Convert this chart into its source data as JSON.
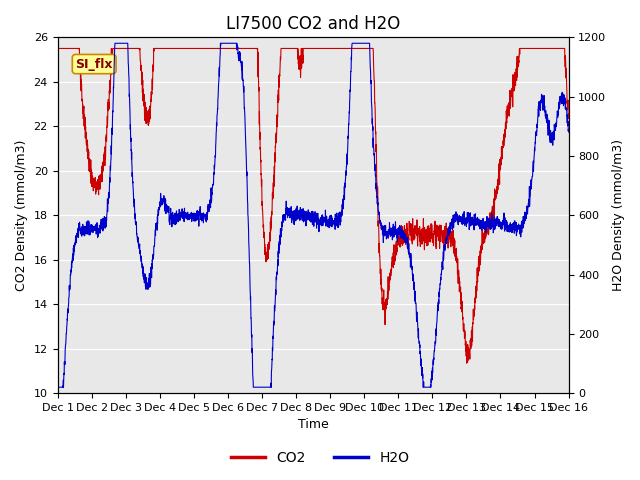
{
  "title": "LI7500 CO2 and H2O",
  "xlabel": "Time",
  "ylabel_left": "CO2 Density (mmol/m3)",
  "ylabel_right": "H2O Density (mmol/m3)",
  "ylim_left": [
    10,
    26
  ],
  "ylim_right": [
    0,
    1200
  ],
  "yticks_left": [
    10,
    12,
    14,
    16,
    18,
    20,
    22,
    24,
    26
  ],
  "yticks_right": [
    0,
    200,
    400,
    600,
    800,
    1000,
    1200
  ],
  "xticklabels": [
    "Dec 1",
    "Dec 2",
    "Dec 3",
    "Dec 4",
    "Dec 5",
    "Dec 6",
    "Dec 7",
    "Dec 8",
    "Dec 9",
    "Dec 10",
    "Dec 11",
    "Dec 12",
    "Dec 13",
    "Dec 14",
    "Dec 15",
    "Dec 16"
  ],
  "co2_color": "#cc0000",
  "h2o_color": "#0000cc",
  "background_color": "#e8e8e8",
  "legend_co2": "CO2",
  "legend_h2o": "H2O",
  "annotation_text": "SI_flx",
  "annotation_bg": "#ffff99",
  "annotation_border": "#cc8800",
  "linewidth": 0.8,
  "n_points": 3000,
  "seed": 7,
  "title_fontsize": 12,
  "axis_label_fontsize": 9,
  "tick_fontsize": 8,
  "legend_fontsize": 10,
  "fig_facecolor": "#ffffff",
  "figsize": [
    6.4,
    4.8
  ],
  "dpi": 100
}
